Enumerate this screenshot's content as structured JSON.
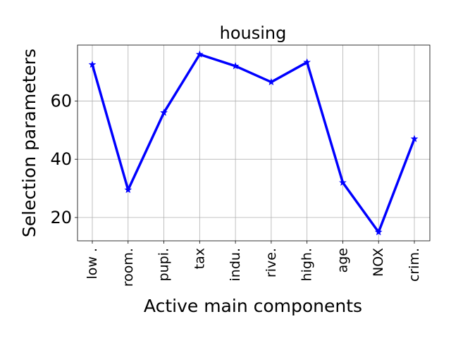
{
  "chart_data": {
    "type": "line",
    "title": "housing",
    "xlabel": "Active main components",
    "ylabel": "Selection parameters",
    "categories": [
      "low .",
      "room.",
      "pupi.",
      "tax",
      "indu.",
      "rive.",
      "high.",
      "age",
      "NOX",
      "crim."
    ],
    "series": [
      {
        "name": "housing",
        "values": [
          72.5,
          29.5,
          56.0,
          76.0,
          72.0,
          66.5,
          73.3,
          32.0,
          15.0,
          47.0
        ],
        "color": "#0000ff",
        "marker": "star"
      }
    ],
    "yticks": [
      20,
      40,
      60
    ],
    "ylim": [
      12.0,
      79.2
    ],
    "grid": true
  }
}
